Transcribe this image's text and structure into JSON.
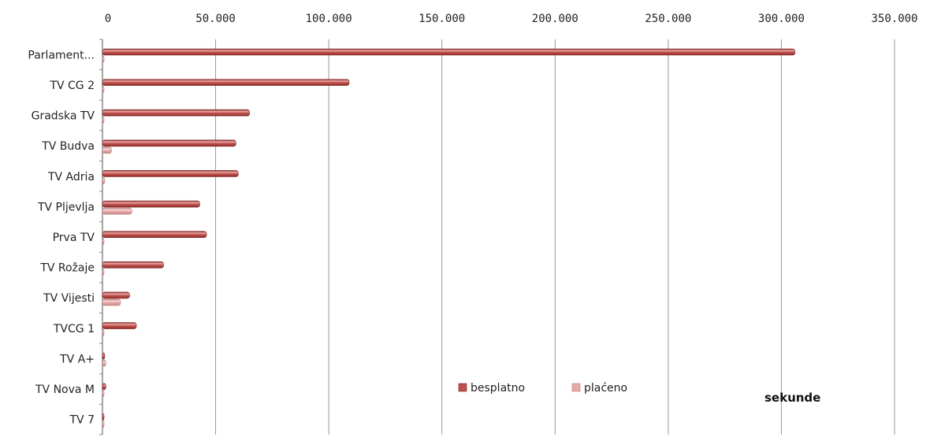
{
  "chart_data": {
    "type": "bar",
    "orientation": "horizontal",
    "categories": [
      "Parlament...",
      "TV CG 2",
      "Gradska TV",
      "TV Budva",
      "TV Adria",
      "TV Pljevlja",
      "Prva TV",
      "TV Rožaje",
      "TV Vijesti",
      "TVCG 1",
      "TV A+",
      "TV Nova M",
      "TV 7"
    ],
    "series": [
      {
        "name": "besplatno",
        "color": "#c0504d",
        "values": [
          306000,
          109000,
          65000,
          59000,
          60000,
          43000,
          46000,
          27000,
          12000,
          15000,
          1000,
          1500,
          500
        ]
      },
      {
        "name": "plaćeno",
        "color": "#e6a9a7",
        "values": [
          500,
          300,
          300,
          4000,
          1000,
          13000,
          500,
          500,
          8000,
          500,
          1500,
          500,
          300
        ]
      }
    ],
    "xlim": [
      0,
      350000
    ],
    "x_ticks": [
      "0",
      "50.000",
      "100.000",
      "150.000",
      "200.000",
      "250.000",
      "300.000",
      "350.000"
    ],
    "x_axis_position": "top",
    "grid": true,
    "legend_position": "bottom-center",
    "unit_label": "sekunde"
  }
}
